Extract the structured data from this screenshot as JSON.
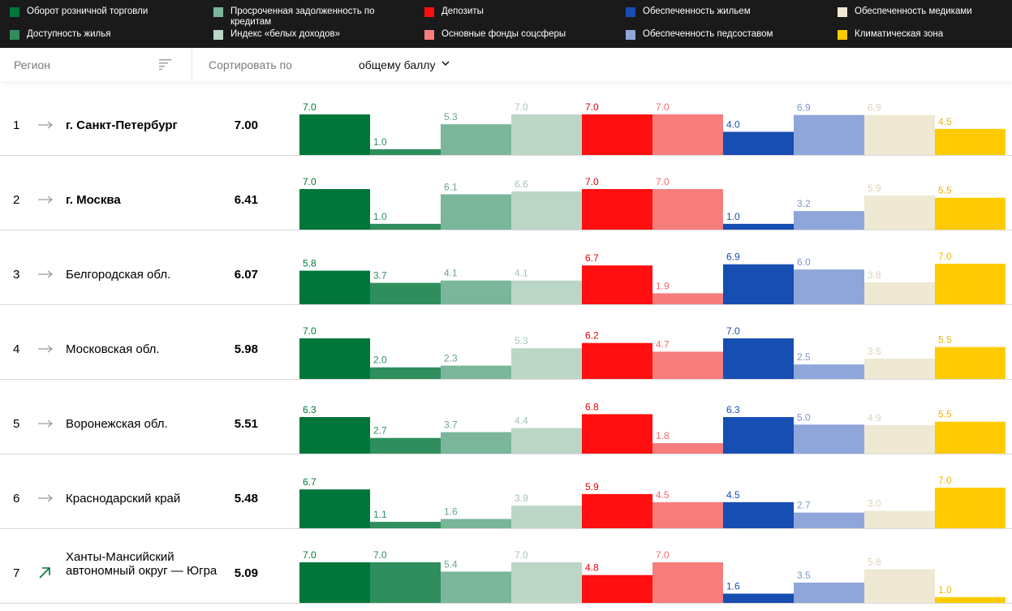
{
  "legend": [
    {
      "label": "Оборот розничной торговли",
      "color": "#00763a"
    },
    {
      "label": "Просроченная задолженность по кредитам",
      "color": "#7bb69a"
    },
    {
      "label": "Депозиты",
      "color": "#ff0f0f"
    },
    {
      "label": "Обеспеченность жильем",
      "color": "#174eb2"
    },
    {
      "label": "Обеспеченность медиками",
      "color": "#efe8d2"
    },
    {
      "label": "Доступность жилья",
      "color": "#2f8e5d"
    },
    {
      "label": "Индекс «белых доходов»",
      "color": "#bbd6c7"
    },
    {
      "label": "Основные фонды соцсферы",
      "color": "#f77d7d"
    },
    {
      "label": "Обеспеченность педсоставом",
      "color": "#8fa6da"
    },
    {
      "label": "Климатическая зона",
      "color": "#ffcb00"
    }
  ],
  "toolbar": {
    "region_label": "Регион",
    "sort_by_label": "Сортировать по",
    "sort_value": "общему баллу"
  },
  "rows": [
    {
      "rank": "1",
      "region": "г. Санкт-Петербург",
      "score": "7.00",
      "trend": "flat",
      "bold": true
    },
    {
      "rank": "2",
      "region": "г. Москва",
      "score": "6.41",
      "trend": "flat",
      "bold": true
    },
    {
      "rank": "3",
      "region": "Белгородская обл.",
      "score": "6.07",
      "trend": "flat",
      "bold": false
    },
    {
      "rank": "4",
      "region": "Московская обл.",
      "score": "5.98",
      "trend": "flat",
      "bold": false
    },
    {
      "rank": "5",
      "region": "Воронежская обл.",
      "score": "5.51",
      "trend": "flat",
      "bold": false
    },
    {
      "rank": "6",
      "region": "Краснодарский край",
      "score": "5.48",
      "trend": "flat",
      "bold": false
    },
    {
      "rank": "7",
      "region": "Ханты-Мансийский автономный округ — Югра",
      "score": "5.09",
      "trend": "up",
      "bold": false
    }
  ],
  "chart_data": {
    "type": "bar",
    "ylim": [
      0,
      7
    ],
    "series": [
      {
        "name": "Оборот розничной торговли",
        "color": "#00763a",
        "label_color": "#00763a",
        "values": [
          7.0,
          7.0,
          5.8,
          7.0,
          6.3,
          6.7,
          7.0
        ]
      },
      {
        "name": "Доступность жилья",
        "color": "#2f8e5d",
        "label_color": "#2f8e5d",
        "values": [
          1.0,
          1.0,
          3.7,
          2.0,
          2.7,
          1.1,
          7.0
        ]
      },
      {
        "name": "Просроченная задолженность по кредитам",
        "color": "#7bb69a",
        "label_color": "#6aa688",
        "values": [
          5.3,
          6.1,
          4.1,
          2.3,
          3.7,
          1.6,
          5.4
        ]
      },
      {
        "name": "Индекс «белых доходов»",
        "color": "#bbd6c7",
        "label_color": "#a5c6b4",
        "values": [
          7.0,
          6.6,
          4.1,
          5.3,
          4.4,
          3.9,
          7.0
        ]
      },
      {
        "name": "Депозиты",
        "color": "#ff0f0f",
        "label_color": "#e60000",
        "values": [
          7.0,
          7.0,
          6.7,
          6.2,
          6.8,
          5.9,
          4.8
        ]
      },
      {
        "name": "Основные фонды соцсферы",
        "color": "#f77d7d",
        "label_color": "#f26a6a",
        "values": [
          7.0,
          7.0,
          1.9,
          4.7,
          1.8,
          4.5,
          7.0
        ]
      },
      {
        "name": "Обеспеченность жильем",
        "color": "#174eb2",
        "label_color": "#174eb2",
        "values": [
          4.0,
          1.0,
          6.9,
          7.0,
          6.3,
          4.5,
          1.6
        ]
      },
      {
        "name": "Обеспеченность педсоставом",
        "color": "#8fa6da",
        "label_color": "#7b95cf",
        "values": [
          6.9,
          3.2,
          6.0,
          2.5,
          5.0,
          2.7,
          3.5
        ]
      },
      {
        "name": "Обеспеченность медиками",
        "color": "#efe8d2",
        "label_color": "#dcd3b6",
        "values": [
          6.9,
          5.9,
          3.8,
          3.5,
          4.9,
          3.0,
          5.8
        ]
      },
      {
        "name": "Климатическая зона",
        "color": "#ffcb00",
        "label_color": "#f0b800",
        "values": [
          4.5,
          5.5,
          7.0,
          5.5,
          5.5,
          7.0,
          1.0
        ]
      }
    ]
  }
}
